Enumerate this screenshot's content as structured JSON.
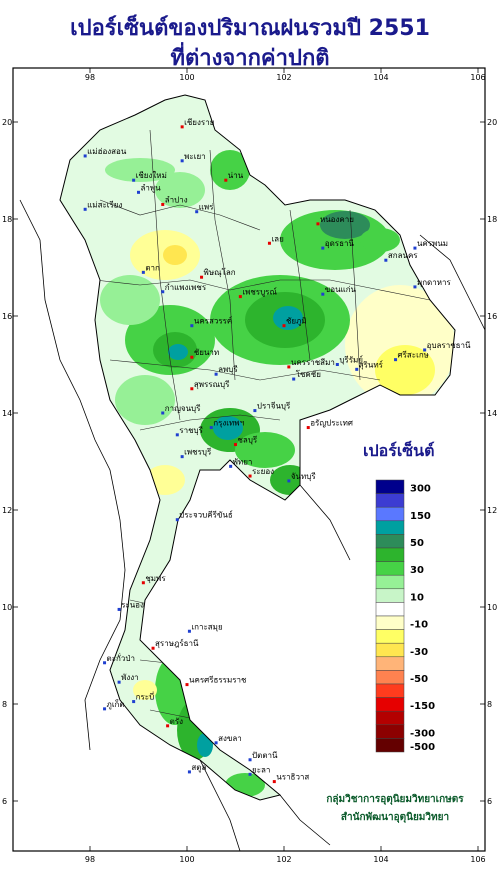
{
  "title_line1": "เปอร์เซ็นต์ของปริมาณฝนรวมปี 2551",
  "title_line2": "ที่ต่างจากค่าปกติ",
  "axes": {
    "x_ticks": [
      "98",
      "100",
      "102",
      "104",
      "106"
    ],
    "y_ticks": [
      "20",
      "18",
      "16",
      "14",
      "12",
      "10",
      "8",
      "6"
    ]
  },
  "legend": {
    "title": "เปอร์เซ็นต์",
    "bins": [
      {
        "color": "#00008c",
        "label": "300"
      },
      {
        "color": "#3c3cd2",
        "label": ""
      },
      {
        "color": "#5a78ff",
        "label": "150"
      },
      {
        "color": "#00a0a0",
        "label": ""
      },
      {
        "color": "#2d8c5a",
        "label": "50"
      },
      {
        "color": "#2db42d",
        "label": ""
      },
      {
        "color": "#46d246",
        "label": "30"
      },
      {
        "color": "#96f096",
        "label": ""
      },
      {
        "color": "#c8f5c8",
        "label": "10"
      },
      {
        "color": "#ffffff",
        "label": ""
      },
      {
        "color": "#ffffc8",
        "label": "-10"
      },
      {
        "color": "#ffff64",
        "label": ""
      },
      {
        "color": "#ffe650",
        "label": "-30"
      },
      {
        "color": "#ffb478",
        "label": ""
      },
      {
        "color": "#ff8250",
        "label": "-50"
      },
      {
        "color": "#ff3c1e",
        "label": ""
      },
      {
        "color": "#e60000",
        "label": "-150"
      },
      {
        "color": "#b40000",
        "label": ""
      },
      {
        "color": "#8c0000",
        "label": "-300"
      },
      {
        "color": "#640000",
        "label": "-500"
      }
    ]
  },
  "places": [
    {
      "name": "เชียงราย",
      "lon": 99.9,
      "lat": 19.9
    },
    {
      "name": "แม่ฮ่องสอน",
      "lon": 97.9,
      "lat": 19.3
    },
    {
      "name": "พะเยา",
      "lon": 99.9,
      "lat": 19.2
    },
    {
      "name": "น่าน",
      "lon": 100.8,
      "lat": 18.8
    },
    {
      "name": "เชียงใหม่",
      "lon": 98.9,
      "lat": 18.8
    },
    {
      "name": "ลำพูน",
      "lon": 99.0,
      "lat": 18.55
    },
    {
      "name": "ลำปาง",
      "lon": 99.5,
      "lat": 18.3
    },
    {
      "name": "แพร่",
      "lon": 100.2,
      "lat": 18.15
    },
    {
      "name": "แม่สะเรียง",
      "lon": 97.9,
      "lat": 18.2
    },
    {
      "name": "หนองคาย",
      "lon": 102.7,
      "lat": 17.9
    },
    {
      "name": "อุดรธานี",
      "lon": 102.8,
      "lat": 17.4
    },
    {
      "name": "นครพนม",
      "lon": 104.7,
      "lat": 17.4
    },
    {
      "name": "เลย",
      "lon": 101.7,
      "lat": 17.5
    },
    {
      "name": "สกลนคร",
      "lon": 104.1,
      "lat": 17.15
    },
    {
      "name": "ตาก",
      "lon": 99.1,
      "lat": 16.9
    },
    {
      "name": "พิษณุโลก",
      "lon": 100.3,
      "lat": 16.8
    },
    {
      "name": "มุกดาหาร",
      "lon": 104.7,
      "lat": 16.6
    },
    {
      "name": "กำแพงเพชร",
      "lon": 99.5,
      "lat": 16.5
    },
    {
      "name": "เพชรบูรณ์",
      "lon": 101.1,
      "lat": 16.4
    },
    {
      "name": "ขอนแก่น",
      "lon": 102.8,
      "lat": 16.45
    },
    {
      "name": "นครสวรรค์",
      "lon": 100.1,
      "lat": 15.8
    },
    {
      "name": "ชัยภูมิ",
      "lon": 102.0,
      "lat": 15.8
    },
    {
      "name": "อุบลราชธานี",
      "lon": 104.9,
      "lat": 15.3
    },
    {
      "name": "ลพบุรี",
      "lon": 100.6,
      "lat": 14.8
    },
    {
      "name": "นครราชสีมา",
      "lon": 102.1,
      "lat": 14.95
    },
    {
      "name": "สุรินทร์",
      "lon": 103.5,
      "lat": 14.9
    },
    {
      "name": "ศรีสะเกษ",
      "lon": 104.3,
      "lat": 15.1
    },
    {
      "name": "ชัยนาท",
      "lon": 100.1,
      "lat": 15.15
    },
    {
      "name": "บุรีรัมย์",
      "lon": 103.1,
      "lat": 15.0
    },
    {
      "name": "โชคชัย",
      "lon": 102.2,
      "lat": 14.7
    },
    {
      "name": "สุพรรณบุรี",
      "lon": 100.1,
      "lat": 14.5
    },
    {
      "name": "กาญจนบุรี",
      "lon": 99.5,
      "lat": 14.0
    },
    {
      "name": "ปราจีนบุรี",
      "lon": 101.4,
      "lat": 14.05
    },
    {
      "name": "อรัญประเทศ",
      "lon": 102.5,
      "lat": 13.7
    },
    {
      "name": "กรุงเทพฯ",
      "lon": 100.5,
      "lat": 13.7
    },
    {
      "name": "ราชบุรี",
      "lon": 99.8,
      "lat": 13.55
    },
    {
      "name": "ชลบุรี",
      "lon": 101.0,
      "lat": 13.35
    },
    {
      "name": "เพชรบุรี",
      "lon": 99.9,
      "lat": 13.1
    },
    {
      "name": "พัทยา",
      "lon": 100.9,
      "lat": 12.9
    },
    {
      "name": "ระยอง",
      "lon": 101.3,
      "lat": 12.7
    },
    {
      "name": "จันทบุรี",
      "lon": 102.1,
      "lat": 12.6
    },
    {
      "name": "ประจวบคีรีขันธ์",
      "lon": 99.8,
      "lat": 11.8
    },
    {
      "name": "ชุมพร",
      "lon": 99.1,
      "lat": 10.5
    },
    {
      "name": "ระนอง",
      "lon": 98.6,
      "lat": 9.95
    },
    {
      "name": "เกาะสมุย",
      "lon": 100.05,
      "lat": 9.5
    },
    {
      "name": "สุราษฎร์ธานี",
      "lon": 99.3,
      "lat": 9.15
    },
    {
      "name": "ตะกั่วป่า",
      "lon": 98.3,
      "lat": 8.85
    },
    {
      "name": "พังงา",
      "lon": 98.6,
      "lat": 8.45
    },
    {
      "name": "นครศรีธรรมราช",
      "lon": 100.0,
      "lat": 8.4
    },
    {
      "name": "ภูเก็ต",
      "lon": 98.3,
      "lat": 7.9
    },
    {
      "name": "กระบี่",
      "lon": 98.9,
      "lat": 8.05
    },
    {
      "name": "ตรัง",
      "lon": 99.6,
      "lat": 7.55
    },
    {
      "name": "สงขลา",
      "lon": 100.6,
      "lat": 7.2
    },
    {
      "name": "ปัตตานี",
      "lon": 101.3,
      "lat": 6.85
    },
    {
      "name": "นราธิวาส",
      "lon": 101.8,
      "lat": 6.4
    },
    {
      "name": "ยะลา",
      "lon": 101.3,
      "lat": 6.55
    },
    {
      "name": "สตูล",
      "lon": 100.05,
      "lat": 6.6
    }
  ],
  "credit_line1": "กลุ่มวิชาการอุตุนิยมวิทยาเกษตร",
  "credit_line2": "สำนักพัฒนาอุตุนิยมวิทยา"
}
